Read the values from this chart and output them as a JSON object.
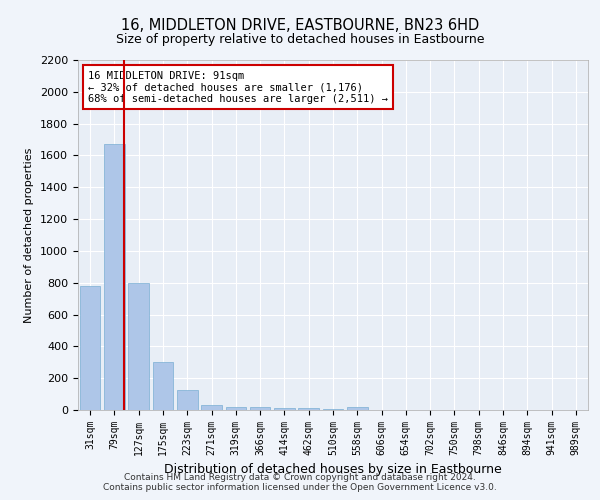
{
  "title": "16, MIDDLETON DRIVE, EASTBOURNE, BN23 6HD",
  "subtitle": "Size of property relative to detached houses in Eastbourne",
  "xlabel": "Distribution of detached houses by size in Eastbourne",
  "ylabel": "Number of detached properties",
  "categories": [
    "31sqm",
    "79sqm",
    "127sqm",
    "175sqm",
    "223sqm",
    "271sqm",
    "319sqm",
    "366sqm",
    "414sqm",
    "462sqm",
    "510sqm",
    "558sqm",
    "606sqm",
    "654sqm",
    "702sqm",
    "750sqm",
    "798sqm",
    "846sqm",
    "894sqm",
    "941sqm",
    "989sqm"
  ],
  "values": [
    780,
    1670,
    800,
    300,
    125,
    30,
    20,
    20,
    15,
    15,
    5,
    20,
    0,
    0,
    0,
    0,
    0,
    0,
    0,
    0,
    0
  ],
  "bar_color": "#aec6e8",
  "bar_edge_color": "#7aafd4",
  "property_line_color": "#cc0000",
  "property_line_x": 1.4,
  "annotation_text": "16 MIDDLETON DRIVE: 91sqm\n← 32% of detached houses are smaller (1,176)\n68% of semi-detached houses are larger (2,511) →",
  "annotation_box_edgecolor": "#cc0000",
  "ylim": [
    0,
    2200
  ],
  "yticks": [
    0,
    200,
    400,
    600,
    800,
    1000,
    1200,
    1400,
    1600,
    1800,
    2000,
    2200
  ],
  "footer": "Contains HM Land Registry data © Crown copyright and database right 2024.\nContains public sector information licensed under the Open Government Licence v3.0.",
  "fig_bg_color": "#f0f4fa",
  "plot_bg_color": "#e8eef6"
}
